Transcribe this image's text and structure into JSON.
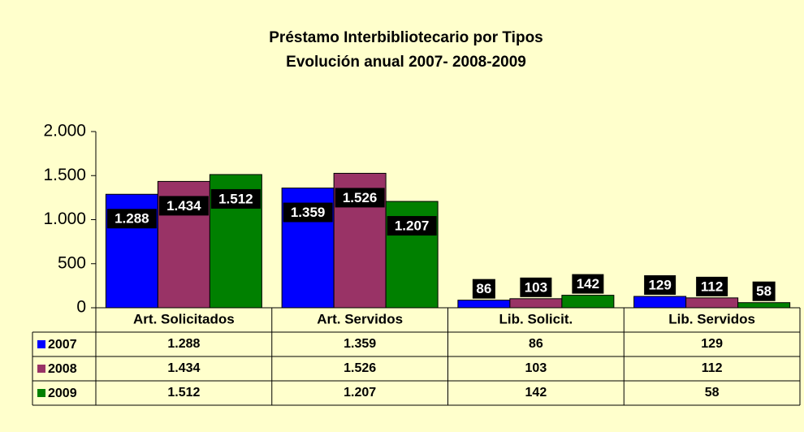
{
  "chart_data": {
    "type": "bar",
    "title": "Préstamo Interbibliotecario por Tipos",
    "subtitle": "Evolución anual 2007- 2008-2009",
    "categories": [
      "Art. Solicitados",
      "Art. Servidos",
      "Lib. Solicit.",
      "Lib. Servidos"
    ],
    "series": [
      {
        "name": "2007",
        "color": "#0000ff",
        "values": [
          1288,
          1359,
          86,
          129
        ],
        "value_labels": [
          "1.288",
          "1.359",
          "86",
          "129"
        ]
      },
      {
        "name": "2008",
        "color": "#993366",
        "values": [
          1434,
          1526,
          103,
          112
        ],
        "value_labels": [
          "1.434",
          "1.526",
          "103",
          "112"
        ]
      },
      {
        "name": "2009",
        "color": "#008000",
        "values": [
          1512,
          1207,
          142,
          58
        ],
        "value_labels": [
          "1.512",
          "1.207",
          "142",
          "58"
        ]
      }
    ],
    "ylim": [
      0,
      2000
    ],
    "yticks": [
      0,
      500,
      {
        "value": 1000,
        "label": "1.000"
      },
      {
        "value": 1500,
        "label": "1.500"
      },
      {
        "value": 2000,
        "label": "2.000"
      }
    ],
    "grid": false
  }
}
